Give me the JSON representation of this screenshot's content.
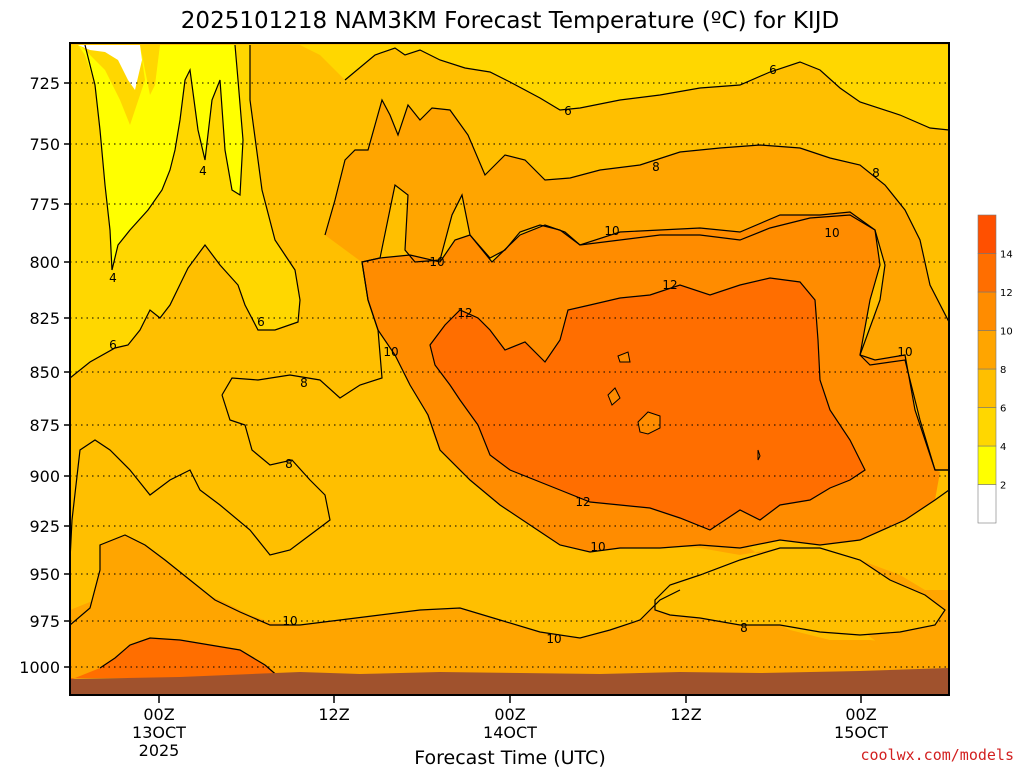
{
  "chart_data": {
    "type": "contour",
    "title": "2025101218 NAM3KM Forecast Temperature (ºC) for KIJD",
    "xlabel": "Forecast Time (UTC)",
    "ylabel": "",
    "credit": "coolwx.com/models",
    "y_axis": {
      "scale": "pressure",
      "inverted": true,
      "ticks": [
        "725",
        "750",
        "775",
        "800",
        "825",
        "850",
        "875",
        "900",
        "925",
        "950",
        "975",
        "1000"
      ]
    },
    "x_axis": {
      "ticks": [
        {
          "label": "00Z",
          "sub1": "13OCT",
          "sub2": "2025"
        },
        {
          "label": "12Z",
          "sub1": "",
          "sub2": ""
        },
        {
          "label": "00Z",
          "sub1": "14OCT",
          "sub2": ""
        },
        {
          "label": "12Z",
          "sub1": "",
          "sub2": ""
        },
        {
          "label": "00Z",
          "sub1": "15OCT",
          "sub2": ""
        }
      ]
    },
    "grid": "dotted horizontal at each pressure level",
    "legend": {
      "position": "right",
      "levels": [
        "2",
        "4",
        "6",
        "8",
        "10",
        "12",
        "14"
      ],
      "colors": [
        "#ffffff",
        "#ffff00",
        "#ffd700",
        "#ffbf00",
        "#ffa500",
        "#ff8c00",
        "#ff6e00",
        "#ff5000"
      ]
    },
    "contour_labels": [
      "4",
      "4",
      "6",
      "6",
      "6",
      "6",
      "8",
      "8",
      "8",
      "8",
      "8",
      "10",
      "10",
      "10",
      "10",
      "10",
      "10",
      "10",
      "10",
      "12",
      "12",
      "12"
    ],
    "ground_color": "#a0522d"
  }
}
